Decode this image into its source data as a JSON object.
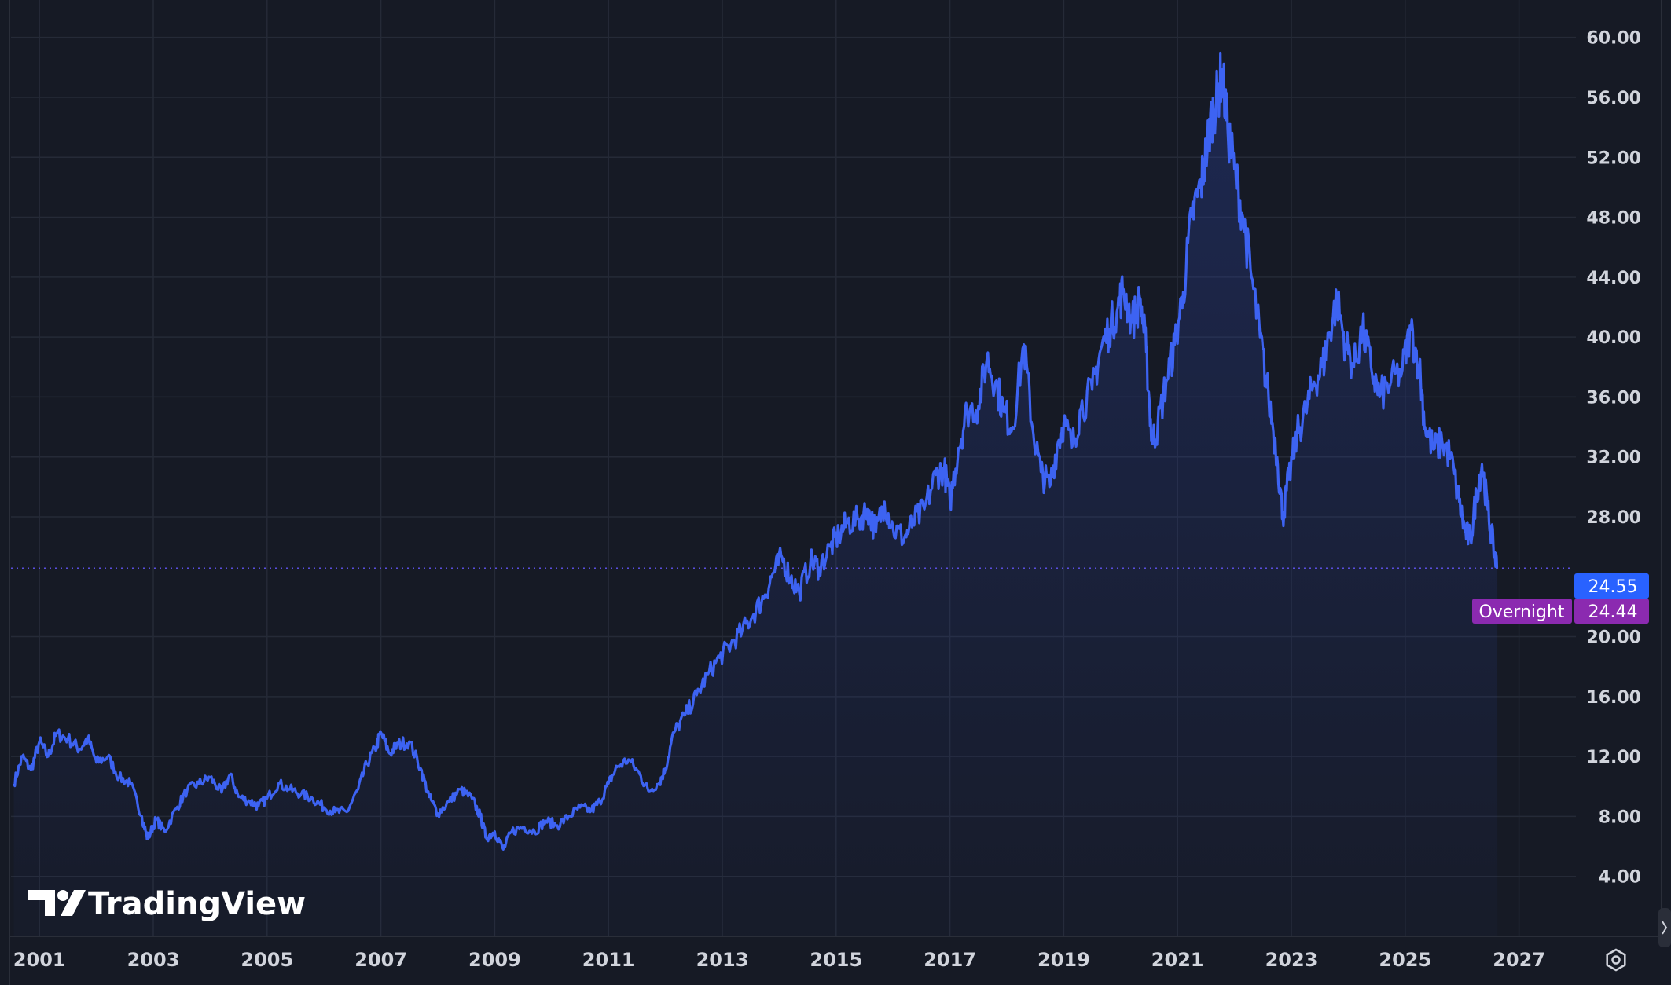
{
  "brand": {
    "name": "TradingView",
    "logo_icon": "tradingview-logo-icon"
  },
  "colors": {
    "background": "#161a25",
    "grid": "#252a37",
    "line": "#3d63f2",
    "last_price_bg": "#2962ff",
    "overnight_bg": "#8b2ab0",
    "axis_text": "#d1d4dc",
    "dotted_line": "#5a4ee0"
  },
  "last_price": {
    "value": "24.55"
  },
  "overnight": {
    "label": "Overnight",
    "value": "24.44"
  },
  "settings_icon": "settings-gear-icon",
  "chart_data": {
    "type": "area",
    "ylim": [
      0,
      62.5
    ],
    "xlim": [
      2000.5,
      2028.0
    ],
    "y_ticks": [
      "4.00",
      "8.00",
      "12.00",
      "16.00",
      "20.00",
      "28.00",
      "32.00",
      "36.00",
      "40.00",
      "44.00",
      "48.00",
      "52.00",
      "56.00",
      "60.00"
    ],
    "x_ticks": [
      "2001",
      "2003",
      "2005",
      "2007",
      "2009",
      "2011",
      "2013",
      "2015",
      "2017",
      "2019",
      "2021",
      "2023",
      "2025",
      "2027"
    ],
    "series": [
      {
        "points": [
          [
            2000.55,
            10.2
          ],
          [
            2000.7,
            12.0
          ],
          [
            2000.85,
            11.1
          ],
          [
            2001.0,
            13.0
          ],
          [
            2001.15,
            12.0
          ],
          [
            2001.3,
            13.5
          ],
          [
            2001.5,
            13.2
          ],
          [
            2001.7,
            12.5
          ],
          [
            2001.85,
            13.2
          ],
          [
            2002.0,
            11.6
          ],
          [
            2002.2,
            12.0
          ],
          [
            2002.4,
            10.6
          ],
          [
            2002.6,
            10.2
          ],
          [
            2002.8,
            8.0
          ],
          [
            2002.9,
            6.5
          ],
          [
            2003.05,
            7.8
          ],
          [
            2003.2,
            7.0
          ],
          [
            2003.4,
            8.5
          ],
          [
            2003.6,
            9.8
          ],
          [
            2003.8,
            10.2
          ],
          [
            2004.0,
            10.6
          ],
          [
            2004.2,
            9.6
          ],
          [
            2004.35,
            10.8
          ],
          [
            2004.5,
            9.3
          ],
          [
            2004.7,
            9.0
          ],
          [
            2004.85,
            8.7
          ],
          [
            2005.0,
            9.2
          ],
          [
            2005.2,
            10.2
          ],
          [
            2005.4,
            9.8
          ],
          [
            2005.6,
            9.5
          ],
          [
            2005.8,
            9.2
          ],
          [
            2006.0,
            8.6
          ],
          [
            2006.2,
            8.3
          ],
          [
            2006.4,
            8.3
          ],
          [
            2006.6,
            9.8
          ],
          [
            2006.75,
            11.5
          ],
          [
            2006.9,
            12.5
          ],
          [
            2007.0,
            13.6
          ],
          [
            2007.15,
            12.2
          ],
          [
            2007.3,
            12.8
          ],
          [
            2007.5,
            13.0
          ],
          [
            2007.7,
            11.2
          ],
          [
            2007.85,
            9.3
          ],
          [
            2008.0,
            8.2
          ],
          [
            2008.2,
            9.0
          ],
          [
            2008.4,
            9.8
          ],
          [
            2008.6,
            9.2
          ],
          [
            2008.75,
            8.0
          ],
          [
            2008.85,
            6.6
          ],
          [
            2009.0,
            7.0
          ],
          [
            2009.15,
            5.8
          ],
          [
            2009.3,
            7.0
          ],
          [
            2009.5,
            7.3
          ],
          [
            2009.7,
            7.0
          ],
          [
            2009.9,
            7.7
          ],
          [
            2010.1,
            7.4
          ],
          [
            2010.3,
            8.0
          ],
          [
            2010.5,
            8.6
          ],
          [
            2010.7,
            8.4
          ],
          [
            2010.85,
            9.0
          ],
          [
            2011.0,
            10.2
          ],
          [
            2011.15,
            11.3
          ],
          [
            2011.35,
            11.8
          ],
          [
            2011.55,
            10.8
          ],
          [
            2011.7,
            9.7
          ],
          [
            2011.9,
            10.3
          ],
          [
            2012.0,
            11.2
          ],
          [
            2012.15,
            13.6
          ],
          [
            2012.35,
            14.8
          ],
          [
            2012.55,
            16.1
          ],
          [
            2012.75,
            17.5
          ],
          [
            2012.95,
            18.6
          ],
          [
            2013.15,
            19.5
          ],
          [
            2013.35,
            20.4
          ],
          [
            2013.55,
            21.5
          ],
          [
            2013.75,
            22.8
          ],
          [
            2013.9,
            24.3
          ],
          [
            2014.05,
            25.3
          ],
          [
            2014.2,
            23.9
          ],
          [
            2014.35,
            23.0
          ],
          [
            2014.55,
            25.0
          ],
          [
            2014.7,
            24.6
          ],
          [
            2014.9,
            26.0
          ],
          [
            2015.05,
            26.8
          ],
          [
            2015.2,
            27.6
          ],
          [
            2015.4,
            27.8
          ],
          [
            2015.55,
            28.5
          ],
          [
            2015.7,
            27.0
          ],
          [
            2015.85,
            29.0
          ],
          [
            2016.0,
            27.2
          ],
          [
            2016.2,
            26.6
          ],
          [
            2016.35,
            27.6
          ],
          [
            2016.55,
            28.5
          ],
          [
            2016.75,
            30.8
          ],
          [
            2016.9,
            31.2
          ],
          [
            2017.0,
            29.0
          ],
          [
            2017.15,
            32.6
          ],
          [
            2017.3,
            35.1
          ],
          [
            2017.5,
            35.4
          ],
          [
            2017.65,
            38.6
          ],
          [
            2017.8,
            37.0
          ],
          [
            2017.95,
            35.0
          ],
          [
            2018.1,
            34.0
          ],
          [
            2018.3,
            39.5
          ],
          [
            2018.45,
            34.0
          ],
          [
            2018.6,
            31.0
          ],
          [
            2018.75,
            30.0
          ],
          [
            2018.9,
            33.0
          ],
          [
            2019.0,
            34.3
          ],
          [
            2019.15,
            32.7
          ],
          [
            2019.3,
            35.2
          ],
          [
            2019.5,
            36.5
          ],
          [
            2019.65,
            39.2
          ],
          [
            2019.8,
            40.5
          ],
          [
            2019.95,
            42.0
          ],
          [
            2020.05,
            43.2
          ],
          [
            2020.2,
            41.0
          ],
          [
            2020.35,
            42.5
          ],
          [
            2020.45,
            39.0
          ],
          [
            2020.55,
            33.0
          ],
          [
            2020.65,
            34.0
          ],
          [
            2020.8,
            37.0
          ],
          [
            2020.95,
            39.5
          ],
          [
            2021.1,
            43.0
          ],
          [
            2021.25,
            48.0
          ],
          [
            2021.4,
            50.0
          ],
          [
            2021.5,
            52.2
          ],
          [
            2021.6,
            54.8
          ],
          [
            2021.7,
            56.0
          ],
          [
            2021.78,
            57.7
          ],
          [
            2021.88,
            54.0
          ],
          [
            2022.0,
            51.2
          ],
          [
            2022.15,
            48.0
          ],
          [
            2022.3,
            44.0
          ],
          [
            2022.45,
            40.0
          ],
          [
            2022.6,
            36.0
          ],
          [
            2022.75,
            32.0
          ],
          [
            2022.85,
            28.0
          ],
          [
            2022.95,
            30.5
          ],
          [
            2023.1,
            33.5
          ],
          [
            2023.25,
            35.0
          ],
          [
            2023.4,
            37.0
          ],
          [
            2023.55,
            38.0
          ],
          [
            2023.65,
            40.0
          ],
          [
            2023.8,
            42.5
          ],
          [
            2023.95,
            39.5
          ],
          [
            2024.1,
            38.0
          ],
          [
            2024.25,
            40.5
          ],
          [
            2024.4,
            38.0
          ],
          [
            2024.55,
            36.0
          ],
          [
            2024.75,
            37.0
          ],
          [
            2024.95,
            37.8
          ],
          [
            2025.1,
            40.5
          ],
          [
            2025.25,
            38.0
          ],
          [
            2025.35,
            34.0
          ],
          [
            2025.5,
            32.5
          ],
          [
            2025.65,
            33.0
          ],
          [
            2025.8,
            32.0
          ],
          [
            2025.95,
            29.0
          ],
          [
            2026.05,
            27.0
          ],
          [
            2026.15,
            26.5
          ],
          [
            2026.25,
            29.5
          ],
          [
            2026.35,
            31.5
          ],
          [
            2026.45,
            28.5
          ],
          [
            2026.55,
            26.0
          ],
          [
            2026.62,
            24.55
          ]
        ]
      }
    ]
  }
}
